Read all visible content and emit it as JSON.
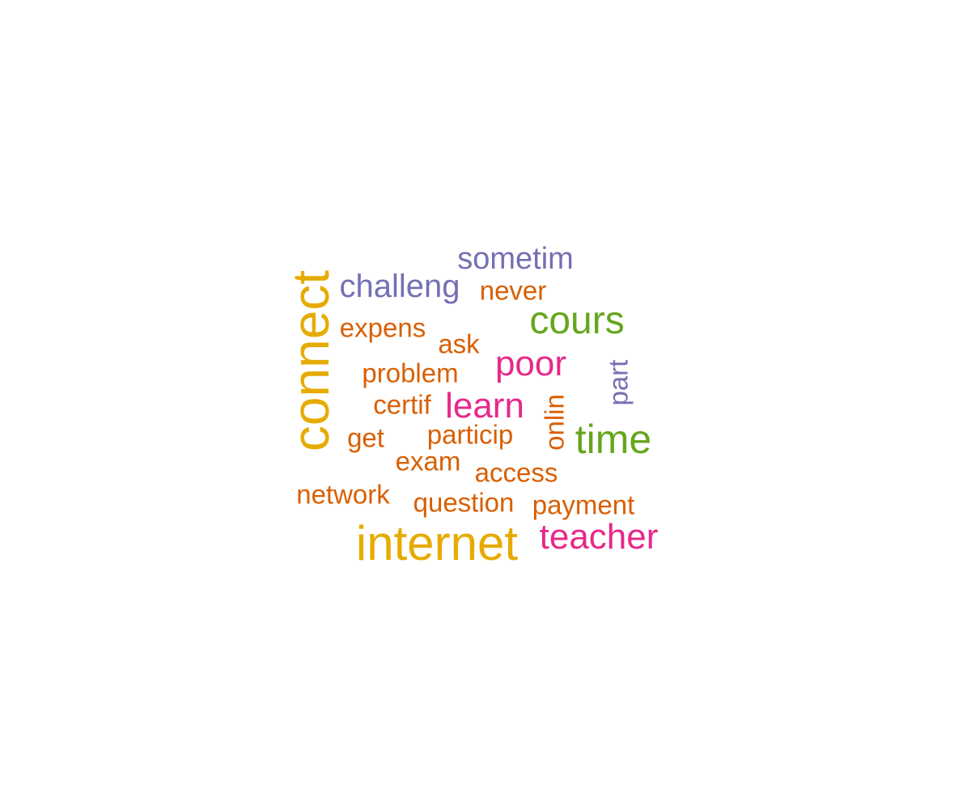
{
  "colors": {
    "gold": "#E6AB02",
    "orange": "#D95F02",
    "purple": "#7570B3",
    "pink": "#E7298A",
    "green": "#66A61E"
  },
  "words": {
    "connect": {
      "text": "connect",
      "color": "#E6AB02"
    },
    "internet": {
      "text": "internet",
      "color": "#E6AB02"
    },
    "challeng": {
      "text": "challeng",
      "color": "#7570B3"
    },
    "sometim": {
      "text": "sometim",
      "color": "#7570B3"
    },
    "never": {
      "text": "never",
      "color": "#D95F02"
    },
    "cours": {
      "text": "cours",
      "color": "#66A61E"
    },
    "expens": {
      "text": "expens",
      "color": "#D95F02"
    },
    "ask": {
      "text": "ask",
      "color": "#D95F02"
    },
    "poor": {
      "text": "poor",
      "color": "#E7298A"
    },
    "part": {
      "text": "part",
      "color": "#7570B3"
    },
    "problem": {
      "text": "problem",
      "color": "#D95F02"
    },
    "certif": {
      "text": "certif",
      "color": "#D95F02"
    },
    "learn": {
      "text": "learn",
      "color": "#E7298A"
    },
    "onlin": {
      "text": "onlin",
      "color": "#D95F02"
    },
    "time": {
      "text": "time",
      "color": "#66A61E"
    },
    "get": {
      "text": "get",
      "color": "#D95F02"
    },
    "particip": {
      "text": "particip",
      "color": "#D95F02"
    },
    "exam": {
      "text": "exam",
      "color": "#D95F02"
    },
    "access": {
      "text": "access",
      "color": "#D95F02"
    },
    "network": {
      "text": "network",
      "color": "#D95F02"
    },
    "question": {
      "text": "question",
      "color": "#D95F02"
    },
    "payment": {
      "text": "payment",
      "color": "#D95F02"
    },
    "teacher": {
      "text": "teacher",
      "color": "#E7298A"
    }
  }
}
